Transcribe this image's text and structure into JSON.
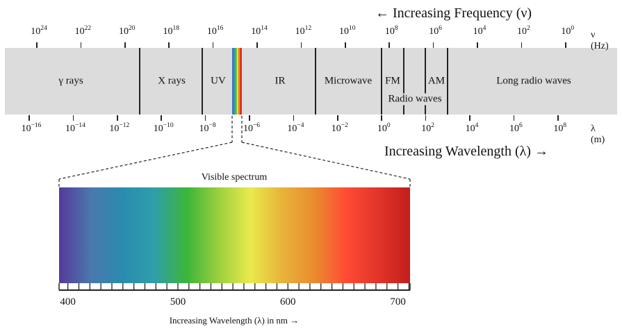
{
  "frequency_title": "← Increasing Frequency (ν)",
  "wavelength_title": "Increasing Wavelength (λ) →",
  "frequency_unit": "ν (Hz)",
  "wavelength_unit": "λ (m)",
  "frequency_ticks": [
    "24",
    "22",
    "20",
    "18",
    "16",
    "14",
    "12",
    "10",
    "8",
    "6",
    "4",
    "2",
    "0"
  ],
  "wavelength_ticks": [
    "−16",
    "−14",
    "−12",
    "−10",
    "−8",
    "−6",
    "−4",
    "−2",
    "0",
    "2",
    "4",
    "6",
    "8"
  ],
  "tick_base": "10",
  "regions": {
    "gamma": "γ rays",
    "xray": "X rays",
    "uv": "UV",
    "ir": "IR",
    "microwave": "Microwave",
    "fm": "FM",
    "am": "AM",
    "radio": "Radio waves",
    "long_radio": "Long radio waves"
  },
  "visible": {
    "title": "Visible spectrum",
    "range_nm": [
      392,
      711
    ],
    "tick_step_nm": 10,
    "labels": [
      "400",
      "500",
      "600",
      "700"
    ],
    "axis_label": "Increasing Wavelength (λ) in nm →",
    "colors": [
      "#553a9c",
      "#4a78ac",
      "#2a8cb0",
      "#2f9fa8",
      "#3cb53a",
      "#9bd03e",
      "#e9ea4c",
      "#e8b33a",
      "#e98c2e",
      "#ff4b34",
      "#e2342a",
      "#c21e1c"
    ]
  }
}
